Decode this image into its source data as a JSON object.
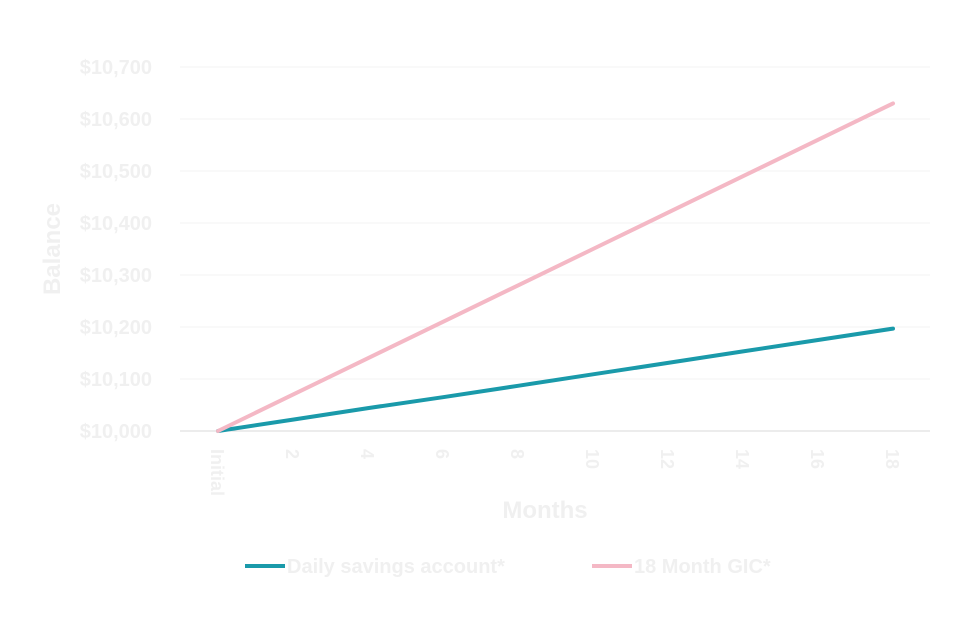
{
  "chart_data": {
    "type": "line",
    "xlabel": "Months",
    "ylabel": "Balance",
    "x": [
      "Initial",
      "2",
      "4",
      "6",
      "8",
      "10",
      "12",
      "14",
      "16",
      "18"
    ],
    "y_ticks": [
      "$10,000",
      "$10,100",
      "$10,200",
      "$10,300",
      "$10,400",
      "$10,500",
      "$10,600",
      "$10,700"
    ],
    "ylim": [
      10000,
      10700
    ],
    "grid": true,
    "legend_position": "bottom",
    "series": [
      {
        "name": "Daily savings account*",
        "color": "#1a9aaa",
        "values": [
          10000,
          10022,
          10044,
          10065,
          10087,
          10109,
          10131,
          10153,
          10175,
          10197
        ]
      },
      {
        "name": "18 Month GIC*",
        "color": "#f4b8c5",
        "values": [
          10000,
          10070,
          10140,
          10210,
          10280,
          10350,
          10420,
          10490,
          10560,
          10630
        ]
      }
    ]
  }
}
